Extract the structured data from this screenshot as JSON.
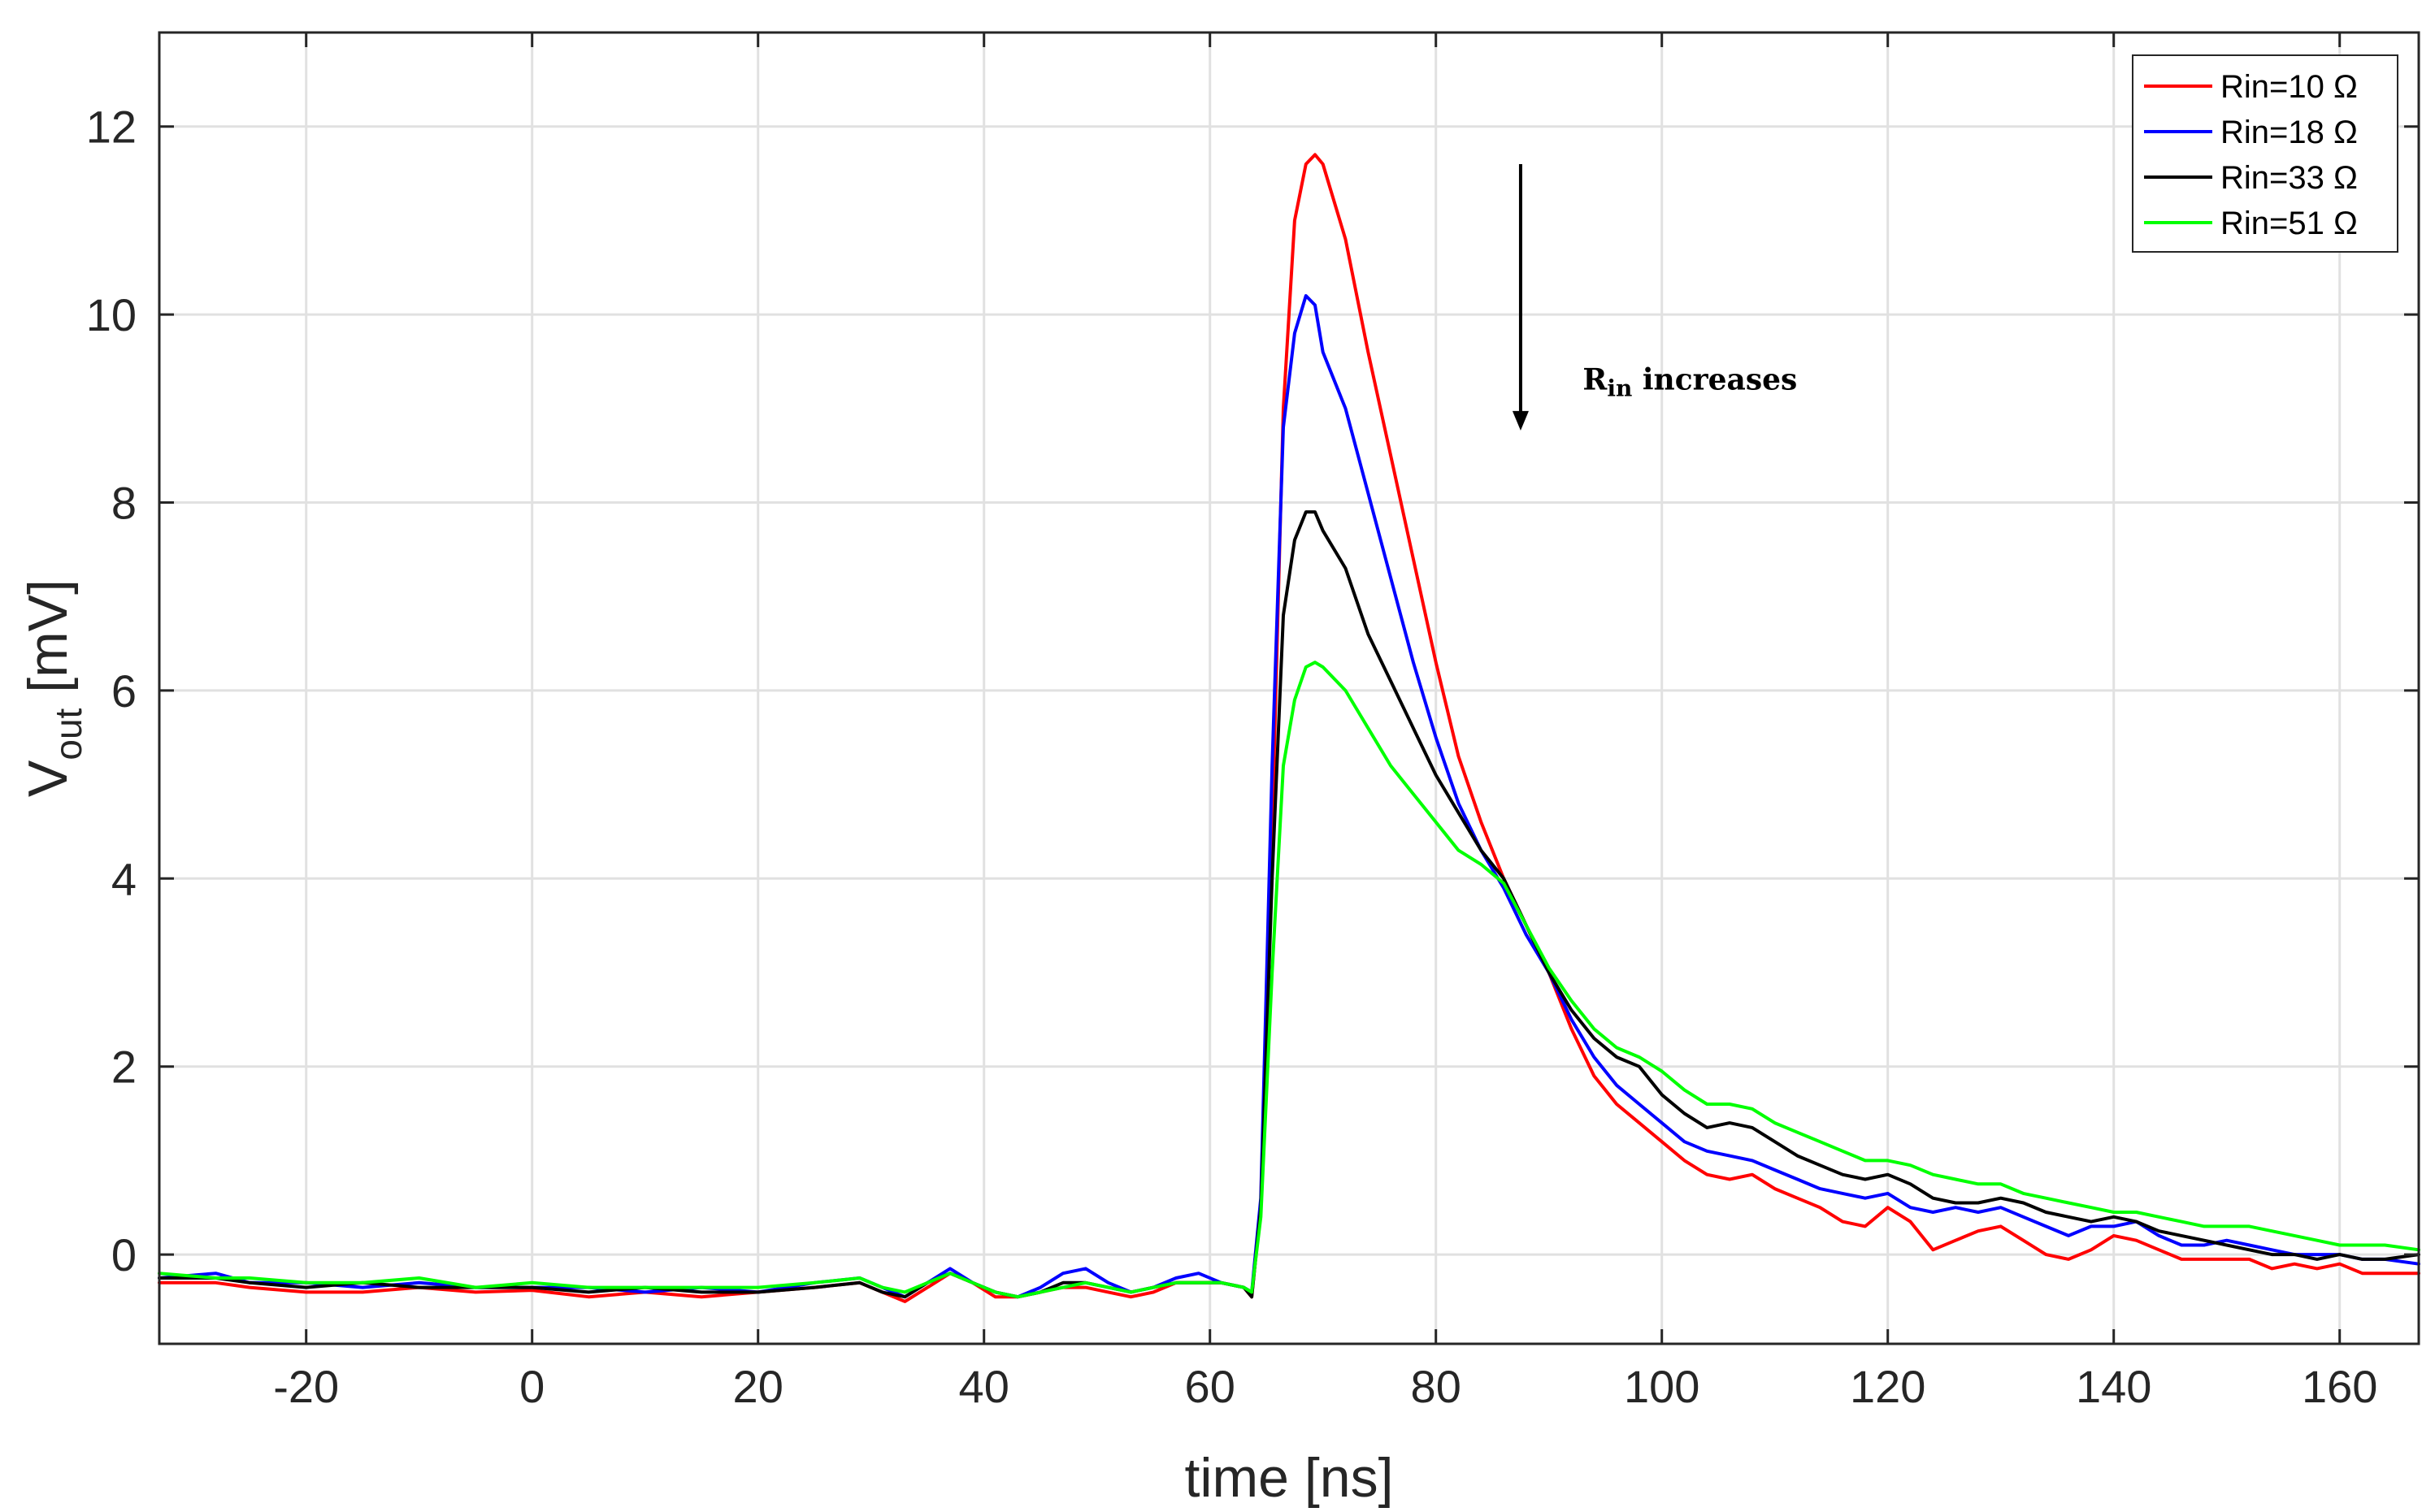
{
  "chart_data": {
    "type": "line",
    "title": "",
    "xlabel": "time [ns]",
    "ylabel_main": "V",
    "ylabel_sub": "out",
    "ylabel_unit": " [mV]",
    "xlim": [
      -33,
      167
    ],
    "ylim": [
      -0.95,
      13
    ],
    "xticks": [
      -20,
      0,
      20,
      40,
      60,
      80,
      100,
      120,
      140,
      160
    ],
    "xtick_labels": [
      "-20",
      "0",
      "20",
      "40",
      "60",
      "80",
      "100",
      "120",
      "140",
      "160"
    ],
    "yticks": [
      0,
      2,
      4,
      6,
      8,
      10,
      12
    ],
    "ytick_labels": [
      "0",
      "2",
      "4",
      "6",
      "8",
      "10",
      "12"
    ],
    "grid": true,
    "legend_position": "top-right",
    "annotation": {
      "text_main": "R",
      "text_sub": "in",
      "text_rest": " increases",
      "arrow_x": 87.5,
      "arrow_y_start": 11.6,
      "arrow_y_end": 8.8,
      "text_x": 93,
      "text_y": 9.2
    },
    "x": [
      -33,
      -28,
      -25,
      -20,
      -15,
      -10,
      -5,
      0,
      5,
      10,
      15,
      20,
      25,
      29,
      31,
      33,
      35,
      37,
      39,
      41,
      43,
      45,
      47,
      49,
      51,
      53,
      55,
      57,
      59,
      61,
      63,
      63.7,
      64.5,
      65.5,
      66.5,
      67.5,
      68.5,
      69.3,
      70,
      72,
      74,
      76,
      78,
      80,
      82,
      84,
      86,
      88,
      90,
      92,
      94,
      96,
      98,
      100,
      102,
      104,
      106,
      108,
      110,
      112,
      114,
      116,
      118,
      120,
      122,
      124,
      126,
      128,
      130,
      132,
      134,
      136,
      138,
      140,
      142,
      144,
      146,
      148,
      150,
      152,
      154,
      156,
      158,
      160,
      162,
      164,
      167
    ],
    "series": [
      {
        "name": "Rin=10 Ω",
        "color": "#ff0000",
        "values": [
          -0.3,
          -0.3,
          -0.35,
          -0.4,
          -0.4,
          -0.35,
          -0.4,
          -0.38,
          -0.45,
          -0.4,
          -0.45,
          -0.4,
          -0.35,
          -0.3,
          -0.4,
          -0.5,
          -0.35,
          -0.2,
          -0.3,
          -0.45,
          -0.45,
          -0.4,
          -0.35,
          -0.35,
          -0.4,
          -0.45,
          -0.4,
          -0.3,
          -0.3,
          -0.3,
          -0.35,
          -0.45,
          0.5,
          4.5,
          9.0,
          11.0,
          11.6,
          11.7,
          11.6,
          10.8,
          9.6,
          8.5,
          7.4,
          6.3,
          5.3,
          4.6,
          4.0,
          3.5,
          3.0,
          2.4,
          1.9,
          1.6,
          1.4,
          1.2,
          1.0,
          0.85,
          0.8,
          0.85,
          0.7,
          0.6,
          0.5,
          0.35,
          0.3,
          0.5,
          0.35,
          0.05,
          0.15,
          0.25,
          0.3,
          0.15,
          0.0,
          -0.05,
          0.05,
          0.2,
          0.15,
          0.05,
          -0.05,
          -0.05,
          -0.05,
          -0.05,
          -0.15,
          -0.1,
          -0.15,
          -0.1,
          -0.2,
          -0.2,
          -0.2
        ]
      },
      {
        "name": "Rin=18 Ω",
        "color": "#0000ff",
        "values": [
          -0.25,
          -0.2,
          -0.3,
          -0.3,
          -0.35,
          -0.3,
          -0.35,
          -0.35,
          -0.35,
          -0.4,
          -0.35,
          -0.4,
          -0.3,
          -0.25,
          -0.35,
          -0.45,
          -0.3,
          -0.15,
          -0.3,
          -0.4,
          -0.45,
          -0.35,
          -0.2,
          -0.15,
          -0.3,
          -0.4,
          -0.35,
          -0.25,
          -0.2,
          -0.3,
          -0.35,
          -0.4,
          0.6,
          5.2,
          8.8,
          9.8,
          10.2,
          10.1,
          9.6,
          9.0,
          8.1,
          7.2,
          6.3,
          5.5,
          4.8,
          4.3,
          3.9,
          3.4,
          3.0,
          2.5,
          2.1,
          1.8,
          1.6,
          1.4,
          1.2,
          1.1,
          1.05,
          1.0,
          0.9,
          0.8,
          0.7,
          0.65,
          0.6,
          0.65,
          0.5,
          0.45,
          0.5,
          0.45,
          0.5,
          0.4,
          0.3,
          0.2,
          0.3,
          0.3,
          0.35,
          0.2,
          0.1,
          0.1,
          0.15,
          0.1,
          0.05,
          0.0,
          0.0,
          0.0,
          -0.05,
          -0.05,
          -0.1
        ]
      },
      {
        "name": "Rin=33 Ω",
        "color": "#000000",
        "values": [
          -0.25,
          -0.25,
          -0.3,
          -0.35,
          -0.3,
          -0.35,
          -0.35,
          -0.35,
          -0.4,
          -0.35,
          -0.4,
          -0.4,
          -0.35,
          -0.3,
          -0.4,
          -0.45,
          -0.3,
          -0.2,
          -0.3,
          -0.4,
          -0.45,
          -0.4,
          -0.3,
          -0.3,
          -0.35,
          -0.4,
          -0.35,
          -0.3,
          -0.3,
          -0.3,
          -0.35,
          -0.45,
          0.5,
          4.0,
          6.8,
          7.6,
          7.9,
          7.9,
          7.7,
          7.3,
          6.6,
          6.1,
          5.6,
          5.1,
          4.7,
          4.3,
          4.0,
          3.5,
          3.0,
          2.6,
          2.3,
          2.1,
          2.0,
          1.7,
          1.5,
          1.35,
          1.4,
          1.35,
          1.2,
          1.05,
          0.95,
          0.85,
          0.8,
          0.85,
          0.75,
          0.6,
          0.55,
          0.55,
          0.6,
          0.55,
          0.45,
          0.4,
          0.35,
          0.4,
          0.35,
          0.25,
          0.2,
          0.15,
          0.1,
          0.05,
          0.0,
          0.0,
          -0.05,
          0.0,
          -0.05,
          -0.05,
          0.0
        ]
      },
      {
        "name": "Rin=51 Ω",
        "color": "#00ff00",
        "values": [
          -0.2,
          -0.25,
          -0.25,
          -0.3,
          -0.3,
          -0.25,
          -0.35,
          -0.3,
          -0.35,
          -0.35,
          -0.35,
          -0.35,
          -0.3,
          -0.25,
          -0.35,
          -0.4,
          -0.3,
          -0.2,
          -0.3,
          -0.4,
          -0.45,
          -0.4,
          -0.35,
          -0.3,
          -0.35,
          -0.4,
          -0.35,
          -0.3,
          -0.3,
          -0.3,
          -0.35,
          -0.4,
          0.4,
          3.0,
          5.2,
          5.9,
          6.25,
          6.3,
          6.25,
          6.0,
          5.6,
          5.2,
          4.9,
          4.6,
          4.3,
          4.15,
          3.95,
          3.5,
          3.05,
          2.7,
          2.4,
          2.2,
          2.1,
          1.95,
          1.75,
          1.6,
          1.6,
          1.55,
          1.4,
          1.3,
          1.2,
          1.1,
          1.0,
          1.0,
          0.95,
          0.85,
          0.8,
          0.75,
          0.75,
          0.65,
          0.6,
          0.55,
          0.5,
          0.45,
          0.45,
          0.4,
          0.35,
          0.3,
          0.3,
          0.3,
          0.25,
          0.2,
          0.15,
          0.1,
          0.1,
          0.1,
          0.05
        ]
      }
    ]
  }
}
